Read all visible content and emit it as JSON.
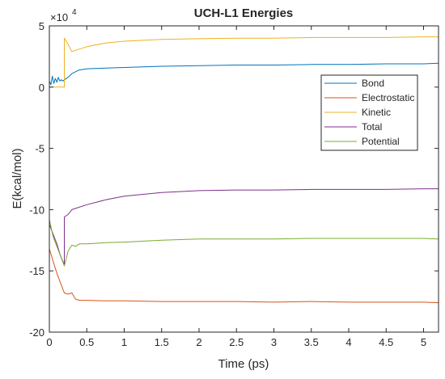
{
  "chart_data": {
    "type": "line",
    "title": "UCH-L1 Energies",
    "xlabel": "Time (ps)",
    "ylabel": "E(kcal/mol)",
    "y_multiplier_label": "×10",
    "y_multiplier_exponent": "4",
    "xlim": [
      0,
      5.2
    ],
    "ylim": [
      -20,
      5
    ],
    "xticks": [
      0,
      0.5,
      1,
      1.5,
      2,
      2.5,
      3,
      3.5,
      4,
      4.5,
      5
    ],
    "xtick_labels": [
      "0",
      "0.5",
      "1",
      "1.5",
      "2",
      "2.5",
      "3",
      "3.5",
      "4",
      "4.5",
      "5"
    ],
    "yticks": [
      -20,
      -15,
      -10,
      -5,
      0,
      5
    ],
    "ytick_labels": [
      "-20",
      "-15",
      "-10",
      "-5",
      "0",
      "5"
    ],
    "grid": false,
    "legend_position": "right",
    "series": [
      {
        "name": "Bond",
        "color": "#0072BD",
        "points": [
          [
            0,
            0.5
          ],
          [
            0.02,
            0.2
          ],
          [
            0.04,
            0.9
          ],
          [
            0.06,
            0.3
          ],
          [
            0.08,
            0.7
          ],
          [
            0.1,
            0.4
          ],
          [
            0.12,
            0.8
          ],
          [
            0.14,
            0.5
          ],
          [
            0.16,
            0.6
          ],
          [
            0.18,
            0.5
          ],
          [
            0.2,
            0.6
          ],
          [
            0.25,
            0.8
          ],
          [
            0.3,
            1.1
          ],
          [
            0.4,
            1.4
          ],
          [
            0.5,
            1.5
          ],
          [
            0.75,
            1.55
          ],
          [
            1,
            1.6
          ],
          [
            1.5,
            1.7
          ],
          [
            2,
            1.75
          ],
          [
            2.5,
            1.8
          ],
          [
            3,
            1.8
          ],
          [
            3.5,
            1.85
          ],
          [
            4,
            1.85
          ],
          [
            4.5,
            1.9
          ],
          [
            5,
            1.9
          ],
          [
            5.2,
            1.95
          ]
        ]
      },
      {
        "name": "Electrostatic",
        "color": "#D95319",
        "points": [
          [
            0,
            -13.2
          ],
          [
            0.05,
            -14.2
          ],
          [
            0.1,
            -15.2
          ],
          [
            0.15,
            -16.0
          ],
          [
            0.2,
            -16.8
          ],
          [
            0.25,
            -16.9
          ],
          [
            0.3,
            -16.8
          ],
          [
            0.35,
            -17.3
          ],
          [
            0.4,
            -17.4
          ],
          [
            0.5,
            -17.4
          ],
          [
            0.75,
            -17.45
          ],
          [
            1,
            -17.45
          ],
          [
            1.5,
            -17.5
          ],
          [
            2,
            -17.5
          ],
          [
            2.5,
            -17.5
          ],
          [
            3,
            -17.55
          ],
          [
            3.5,
            -17.5
          ],
          [
            4,
            -17.55
          ],
          [
            4.5,
            -17.55
          ],
          [
            5,
            -17.55
          ],
          [
            5.2,
            -17.6
          ]
        ]
      },
      {
        "name": "Kinetic",
        "color": "#EDB120",
        "points": [
          [
            0,
            0
          ],
          [
            0.2,
            0
          ],
          [
            0.2,
            4.0
          ],
          [
            0.25,
            3.5
          ],
          [
            0.3,
            2.9
          ],
          [
            0.4,
            3.1
          ],
          [
            0.5,
            3.3
          ],
          [
            0.75,
            3.6
          ],
          [
            1,
            3.75
          ],
          [
            1.5,
            3.9
          ],
          [
            2,
            3.95
          ],
          [
            2.5,
            4.0
          ],
          [
            3,
            4.0
          ],
          [
            3.5,
            4.05
          ],
          [
            4,
            4.05
          ],
          [
            4.5,
            4.05
          ],
          [
            5,
            4.1
          ],
          [
            5.2,
            4.1
          ]
        ]
      },
      {
        "name": "Total",
        "color": "#7E2F8E",
        "points": [
          [
            0,
            -11.2
          ],
          [
            0.05,
            -12.0
          ],
          [
            0.1,
            -12.8
          ],
          [
            0.15,
            -13.8
          ],
          [
            0.2,
            -14.5
          ],
          [
            0.2,
            -10.6
          ],
          [
            0.25,
            -10.4
          ],
          [
            0.3,
            -10.0
          ],
          [
            0.5,
            -9.6
          ],
          [
            0.75,
            -9.2
          ],
          [
            1,
            -8.9
          ],
          [
            1.5,
            -8.6
          ],
          [
            2,
            -8.45
          ],
          [
            2.5,
            -8.4
          ],
          [
            3,
            -8.4
          ],
          [
            3.5,
            -8.35
          ],
          [
            4,
            -8.35
          ],
          [
            4.5,
            -8.35
          ],
          [
            5,
            -8.3
          ],
          [
            5.2,
            -8.3
          ]
        ]
      },
      {
        "name": "Potential",
        "color": "#77AC30",
        "points": [
          [
            0,
            -10.8
          ],
          [
            0.05,
            -12.2
          ],
          [
            0.1,
            -13.0
          ],
          [
            0.15,
            -13.8
          ],
          [
            0.2,
            -14.6
          ],
          [
            0.25,
            -13.4
          ],
          [
            0.3,
            -12.9
          ],
          [
            0.35,
            -13.0
          ],
          [
            0.4,
            -12.8
          ],
          [
            0.5,
            -12.8
          ],
          [
            0.75,
            -12.7
          ],
          [
            1,
            -12.65
          ],
          [
            1.5,
            -12.5
          ],
          [
            2,
            -12.4
          ],
          [
            2.5,
            -12.4
          ],
          [
            3,
            -12.4
          ],
          [
            3.5,
            -12.35
          ],
          [
            4,
            -12.35
          ],
          [
            4.5,
            -12.35
          ],
          [
            5,
            -12.35
          ],
          [
            5.2,
            -12.4
          ]
        ]
      }
    ]
  }
}
